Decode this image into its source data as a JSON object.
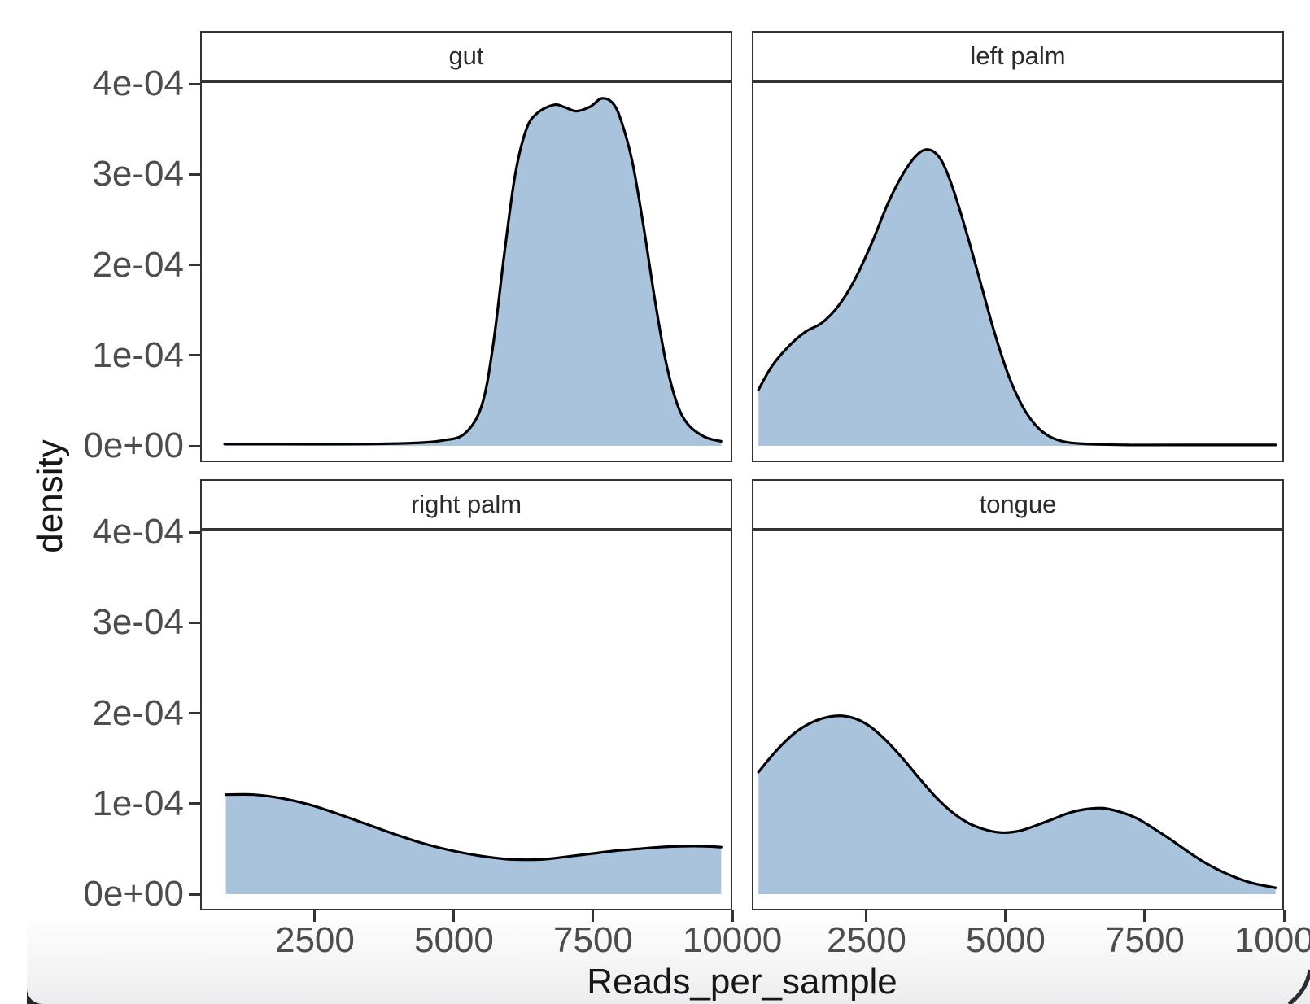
{
  "style": {
    "fill_color": "#a9c3dd",
    "line_color": "#000000",
    "border_color": "#333333",
    "tick_text_color": "#4d4d4d",
    "title_text_color": "#171717",
    "background": "#ffffff",
    "footer_band_top": "#fdfdfd",
    "footer_band_bottom": "#e7e7e9",
    "corner_dark": "#26262c"
  },
  "chart_data": {
    "type": "area",
    "subtype": "density",
    "title": "",
    "xlabel": "Reads_per_sample",
    "ylabel": "density",
    "grid": false,
    "legend": null,
    "xlim": [
      440,
      10000
    ],
    "ylim": [
      -1.81e-05,
      0.000403
    ],
    "x_ticks": [
      2500,
      5000,
      7500,
      10000
    ],
    "x_tick_labels": [
      "2500",
      "5000",
      "7500",
      "10000"
    ],
    "y_ticks": [
      0,
      0.0001,
      0.0002,
      0.0003,
      0.0004
    ],
    "y_tick_labels": [
      "0e+00",
      "1e-04",
      "2e-04",
      "3e-04",
      "4e-04"
    ],
    "facets": [
      {
        "label": "gut",
        "points": [
          [
            880,
            2e-06
          ],
          [
            2000,
            2e-06
          ],
          [
            3200,
            2e-06
          ],
          [
            4200,
            3e-06
          ],
          [
            4800,
            6e-06
          ],
          [
            5200,
            1.4e-05
          ],
          [
            5500,
            4.5e-05
          ],
          [
            5700,
            0.00011
          ],
          [
            5900,
            0.00021
          ],
          [
            6100,
            0.0003
          ],
          [
            6300,
            0.00035
          ],
          [
            6500,
            0.000368
          ],
          [
            6800,
            0.000377
          ],
          [
            7000,
            0.000374
          ],
          [
            7200,
            0.00037
          ],
          [
            7450,
            0.000375
          ],
          [
            7650,
            0.000384
          ],
          [
            7850,
            0.000379
          ],
          [
            8000,
            0.00036
          ],
          [
            8200,
            0.000315
          ],
          [
            8400,
            0.000245
          ],
          [
            8600,
            0.000165
          ],
          [
            8800,
            9.5e-05
          ],
          [
            9000,
            4.8e-05
          ],
          [
            9200,
            2.4e-05
          ],
          [
            9500,
            1e-05
          ],
          [
            9800,
            5e-06
          ]
        ]
      },
      {
        "label": "left palm",
        "points": [
          [
            560,
            6.2e-05
          ],
          [
            800,
            8.8e-05
          ],
          [
            1100,
            0.00011
          ],
          [
            1400,
            0.000126
          ],
          [
            1700,
            0.000136
          ],
          [
            2000,
            0.000155
          ],
          [
            2300,
            0.000185
          ],
          [
            2600,
            0.000225
          ],
          [
            2900,
            0.00027
          ],
          [
            3200,
            0.000305
          ],
          [
            3450,
            0.000324
          ],
          [
            3650,
            0.000327
          ],
          [
            3850,
            0.000315
          ],
          [
            4050,
            0.000285
          ],
          [
            4300,
            0.000235
          ],
          [
            4550,
            0.00018
          ],
          [
            4800,
            0.000125
          ],
          [
            5050,
            7.8e-05
          ],
          [
            5300,
            4.4e-05
          ],
          [
            5550,
            2.2e-05
          ],
          [
            5800,
            1e-05
          ],
          [
            6100,
            4e-06
          ],
          [
            6500,
            2e-06
          ],
          [
            7200,
            1e-06
          ],
          [
            8200,
            1e-06
          ],
          [
            9850,
            1e-06
          ]
        ]
      },
      {
        "label": "right palm",
        "points": [
          [
            900,
            0.00011
          ],
          [
            1400,
            0.00011
          ],
          [
            1900,
            0.000106
          ],
          [
            2400,
            9.9e-05
          ],
          [
            2900,
            8.9e-05
          ],
          [
            3400,
            7.8e-05
          ],
          [
            3900,
            6.7e-05
          ],
          [
            4400,
            5.7e-05
          ],
          [
            4900,
            4.9e-05
          ],
          [
            5400,
            4.3e-05
          ],
          [
            5900,
            3.9e-05
          ],
          [
            6300,
            3.8e-05
          ],
          [
            6700,
            3.9e-05
          ],
          [
            7100,
            4.2e-05
          ],
          [
            7500,
            4.5e-05
          ],
          [
            7900,
            4.8e-05
          ],
          [
            8300,
            5e-05
          ],
          [
            8700,
            5.2e-05
          ],
          [
            9100,
            5.3e-05
          ],
          [
            9500,
            5.3e-05
          ],
          [
            9800,
            5.2e-05
          ]
        ]
      },
      {
        "label": "tongue",
        "points": [
          [
            560,
            0.000135
          ],
          [
            900,
            0.00016
          ],
          [
            1250,
            0.00018
          ],
          [
            1600,
            0.000192
          ],
          [
            1950,
            0.000197
          ],
          [
            2250,
            0.000195
          ],
          [
            2550,
            0.000186
          ],
          [
            2850,
            0.00017
          ],
          [
            3150,
            0.00015
          ],
          [
            3450,
            0.000128
          ],
          [
            3750,
            0.000107
          ],
          [
            4050,
            9e-05
          ],
          [
            4350,
            7.8e-05
          ],
          [
            4650,
            7.1e-05
          ],
          [
            4950,
            6.8e-05
          ],
          [
            5250,
            7e-05
          ],
          [
            5550,
            7.6e-05
          ],
          [
            5850,
            8.3e-05
          ],
          [
            6150,
            9e-05
          ],
          [
            6450,
            9.4e-05
          ],
          [
            6750,
            9.5e-05
          ],
          [
            7050,
            9.1e-05
          ],
          [
            7350,
            8.4e-05
          ],
          [
            7650,
            7.3e-05
          ],
          [
            7950,
            6.1e-05
          ],
          [
            8250,
            4.8e-05
          ],
          [
            8550,
            3.6e-05
          ],
          [
            8850,
            2.6e-05
          ],
          [
            9150,
            1.8e-05
          ],
          [
            9450,
            1.2e-05
          ],
          [
            9850,
            7e-06
          ]
        ]
      }
    ]
  }
}
